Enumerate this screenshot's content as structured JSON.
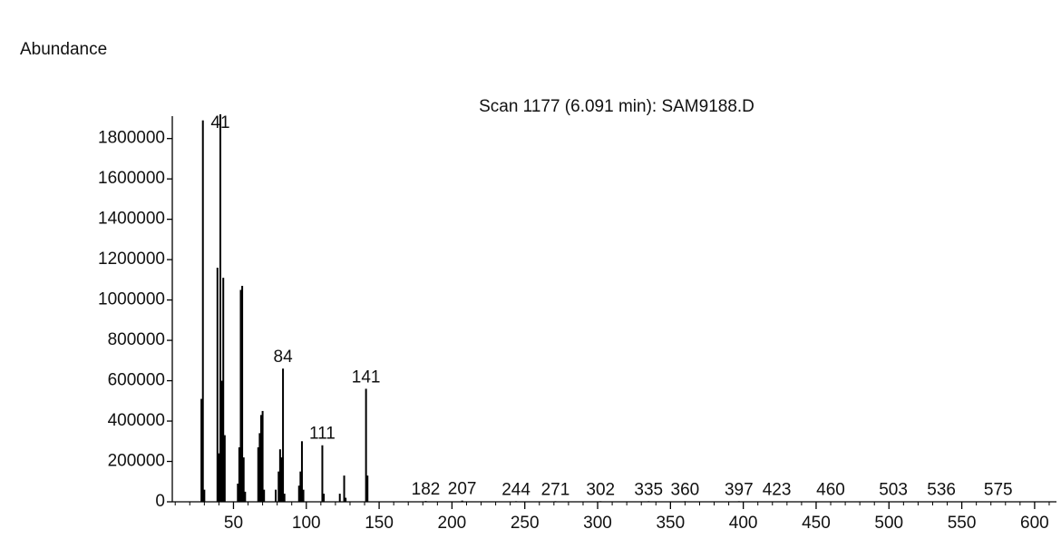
{
  "chart_data": {
    "type": "spectrum",
    "title": "Scan 1177 (6.091 min): SAM9188.D",
    "ylabel": "Abundance",
    "color": "#000000",
    "x": [
      28,
      29,
      30,
      39,
      40,
      41,
      42,
      43,
      44,
      53,
      54,
      55,
      56,
      57,
      58,
      67,
      68,
      69,
      70,
      71,
      79,
      81,
      82,
      83,
      84,
      85,
      95,
      96,
      97,
      98,
      111,
      112,
      123,
      126,
      127,
      141,
      142,
      182,
      207,
      244,
      271,
      302,
      335,
      360,
      397,
      423,
      460,
      503,
      536,
      575
    ],
    "values": [
      510000,
      1890000,
      60000,
      1160000,
      240000,
      1920000,
      600000,
      1110000,
      330000,
      90000,
      270000,
      1050000,
      1070000,
      220000,
      50000,
      270000,
      340000,
      430000,
      450000,
      60000,
      60000,
      150000,
      260000,
      220000,
      660000,
      40000,
      80000,
      150000,
      300000,
      60000,
      280000,
      40000,
      40000,
      130000,
      20000,
      560000,
      130000,
      4000,
      6000,
      3000,
      3000,
      3000,
      3000,
      3000,
      3000,
      2000,
      2000,
      2000,
      2000,
      2000
    ],
    "peak_labels": [
      41,
      84,
      111,
      141,
      182,
      207,
      244,
      271,
      302,
      335,
      360,
      397,
      423,
      460,
      503,
      536,
      575
    ],
    "xlim": [
      8,
      615
    ],
    "ylim": [
      0,
      1920000
    ],
    "xticks": [
      50,
      100,
      150,
      200,
      250,
      300,
      350,
      400,
      450,
      500,
      550,
      600
    ],
    "xminorticks": [
      10,
      20,
      30,
      40,
      60,
      70,
      80,
      90,
      110,
      120,
      130,
      140,
      160,
      170,
      180,
      190,
      210,
      220,
      230,
      240,
      260,
      270,
      280,
      290,
      310,
      320,
      330,
      340,
      360,
      370,
      380,
      390,
      410,
      420,
      430,
      440,
      460,
      470,
      480,
      490,
      510,
      520,
      530,
      540,
      560,
      570,
      580,
      590,
      610
    ],
    "yticks": [
      0,
      200000,
      400000,
      600000,
      800000,
      1000000,
      1200000,
      1400000,
      1600000,
      1800000
    ]
  }
}
